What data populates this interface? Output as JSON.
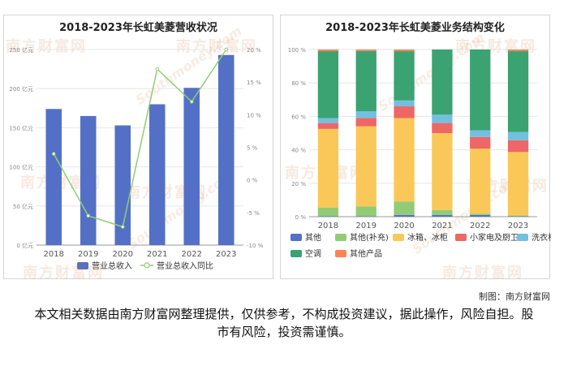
{
  "watermark": {
    "brand": "南方财富网",
    "site": "Southmoney.com"
  },
  "credit": "制图：南方财富网",
  "disclaimer": "本文相关数据由南方财富网整理提供，仅供参考，不构成投资建议，据此操作，风险自担。股市有风险，投资需谨慎。",
  "chart_data": [
    {
      "type": "bar",
      "title": "2018-2023年长虹美菱营收状况",
      "categories": [
        "2018",
        "2019",
        "2020",
        "2021",
        "2022",
        "2023"
      ],
      "series": [
        {
          "name": "营业总收入",
          "type": "bar",
          "axis": "left",
          "color": "#5470c6",
          "values": [
            174,
            165,
            153,
            180,
            201,
            243
          ]
        },
        {
          "name": "营业总收入同比",
          "type": "line",
          "axis": "right",
          "color": "#91cc75",
          "values": [
            4.0,
            -5.5,
            -7.2,
            17.0,
            12.0,
            20.0
          ]
        }
      ],
      "y_left": {
        "ylim": [
          0,
          250
        ],
        "ticks": [
          0,
          50,
          100,
          150,
          200,
          250
        ],
        "unit": "亿元"
      },
      "y_right": {
        "ylim": [
          -10,
          20
        ],
        "ticks": [
          -10,
          -5,
          0,
          5,
          10,
          15,
          20
        ],
        "unit": "%"
      },
      "legend": "bottom",
      "grid": "horizontal"
    },
    {
      "type": "bar",
      "stacked": true,
      "percent": true,
      "title": "2018-2023年长虹美菱业务结构变化",
      "categories": [
        "2018",
        "2019",
        "2020",
        "2021",
        "2022",
        "2023"
      ],
      "series": [
        {
          "name": "其他",
          "color": "#5470c6",
          "values": [
            0.3,
            0.3,
            1.0,
            1.0,
            1.0,
            0.3
          ]
        },
        {
          "name": "其他(补充)",
          "color": "#91cc75",
          "values": [
            5.2,
            5.8,
            8.0,
            3.0,
            0.7,
            0.4
          ]
        },
        {
          "name": "冰箱、冰柜",
          "color": "#fac858",
          "values": [
            47.0,
            48.0,
            50.0,
            46.0,
            39.0,
            38.0
          ]
        },
        {
          "name": "小家电及厨卫",
          "color": "#ee6666",
          "values": [
            3.5,
            5.0,
            7.0,
            6.0,
            7.0,
            7.0
          ]
        },
        {
          "name": "洗衣机",
          "color": "#73c0de",
          "values": [
            3.0,
            4.0,
            3.5,
            5.0,
            4.0,
            5.0
          ]
        },
        {
          "name": "空调",
          "color": "#3ba272",
          "values": [
            40.0,
            36.0,
            29.5,
            39.0,
            48.3,
            48.3
          ]
        },
        {
          "name": "其他产品",
          "color": "#fc8452",
          "values": [
            1.0,
            0.9,
            1.0,
            0.0,
            0.0,
            1.0
          ]
        }
      ],
      "y": {
        "ylim": [
          0,
          100
        ],
        "ticks": [
          0,
          20,
          40,
          60,
          80,
          100
        ],
        "unit": "%"
      },
      "legend": "bottom",
      "grid": "horizontal"
    }
  ]
}
